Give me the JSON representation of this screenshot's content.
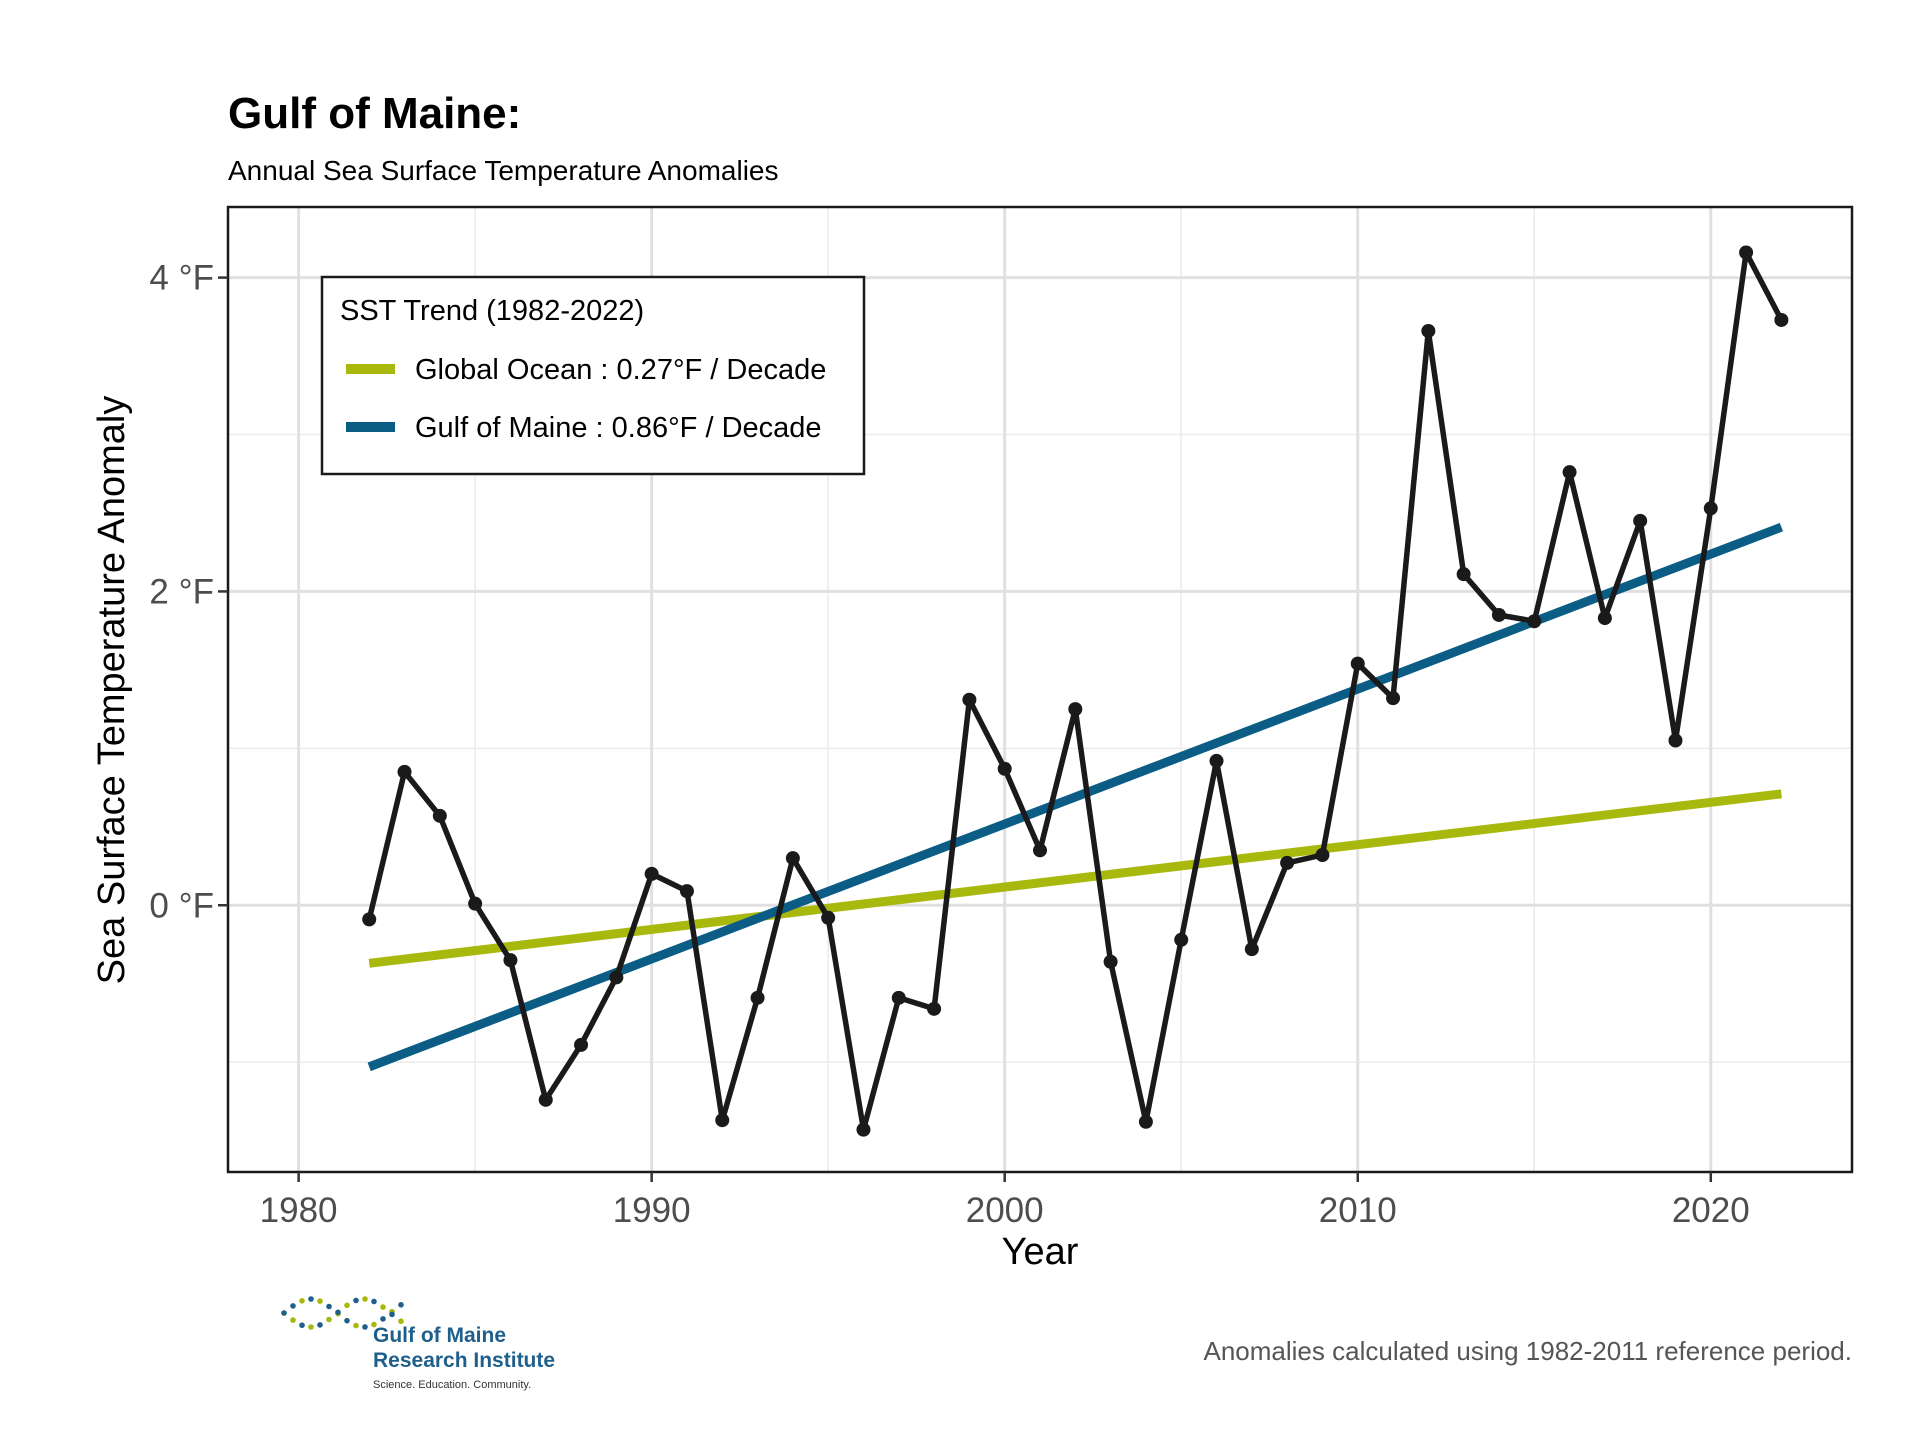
{
  "chart_data": {
    "type": "line",
    "title": "Gulf of Maine:",
    "subtitle": "Annual Sea Surface Temperature Anomalies",
    "xlabel": "Year",
    "ylabel": "Sea Surface Temperature Anomaly",
    "xlim": [
      1978,
      2024
    ],
    "ylim": [
      -1.7,
      4.45
    ],
    "x_ticks": [
      1980,
      1990,
      2000,
      2010,
      2020
    ],
    "x_tick_labels": [
      "1980",
      "1990",
      "2000",
      "2010",
      "2020"
    ],
    "x_minor_ticks": [
      1985,
      1995,
      2005,
      2015
    ],
    "y_ticks": [
      0,
      2,
      4
    ],
    "y_tick_labels": [
      "0 °F",
      "2 °F",
      "4 °F"
    ],
    "y_minor_ticks": [
      -1,
      1,
      3
    ],
    "grid": true,
    "series": [
      {
        "name": "Gulf of Maine annual anomaly",
        "color": "#1a1a1a",
        "x": [
          1982,
          1983,
          1984,
          1985,
          1986,
          1987,
          1988,
          1989,
          1990,
          1991,
          1992,
          1993,
          1994,
          1995,
          1996,
          1997,
          1998,
          1999,
          2000,
          2001,
          2002,
          2003,
          2004,
          2005,
          2006,
          2007,
          2008,
          2009,
          2010,
          2011,
          2012,
          2013,
          2014,
          2015,
          2016,
          2017,
          2018,
          2019,
          2020,
          2021,
          2022
        ],
        "y": [
          -0.09,
          0.85,
          0.57,
          0.01,
          -0.35,
          -1.24,
          -0.89,
          -0.46,
          0.2,
          0.09,
          -1.37,
          -0.59,
          0.3,
          -0.08,
          -1.43,
          -0.59,
          -0.66,
          1.31,
          0.87,
          0.35,
          1.25,
          -0.36,
          -1.38,
          -0.22,
          0.92,
          -0.28,
          0.27,
          0.32,
          1.54,
          1.32,
          3.66,
          2.11,
          1.85,
          1.81,
          2.76,
          1.83,
          2.45,
          1.05,
          2.53,
          4.16,
          3.73
        ]
      }
    ],
    "trend_lines": [
      {
        "name": "Global Ocean",
        "label": "Global Ocean : 0.27°F / Decade",
        "color": "#a8b80d",
        "x": [
          1982,
          2022
        ],
        "y": [
          -0.37,
          0.71
        ]
      },
      {
        "name": "Gulf of Maine",
        "label": "Gulf of Maine : 0.86°F / Decade",
        "color": "#0b5d86",
        "x": [
          1982,
          2022
        ],
        "y": [
          -1.03,
          2.41
        ]
      }
    ],
    "legend": {
      "title": "SST Trend (1982-2022)",
      "position": "top-left"
    }
  },
  "caption": "Anomalies calculated using 1982-2011 reference period.",
  "logo": {
    "line1": "Gulf of Maine",
    "line2": "Research Institute",
    "tagline": "Science. Education. Community.",
    "colors": [
      "#1f5f8b",
      "#a8b80d"
    ]
  }
}
